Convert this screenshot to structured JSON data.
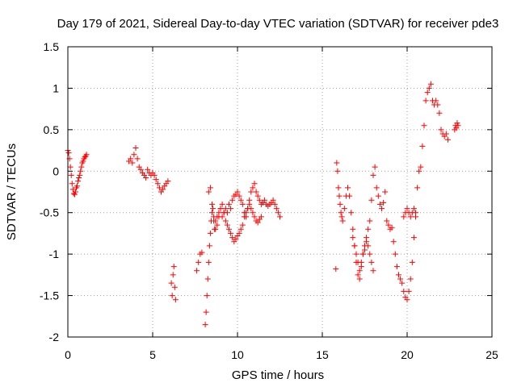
{
  "chart_data": {
    "type": "scatter",
    "title": "Day 179 of 2021, Sidereal Day-to-day VTEC variation (SDTVAR) for receiver pde3",
    "xlabel": "GPS time / hours",
    "ylabel": "SDTVAR / TECUs",
    "xlim": [
      0,
      25
    ],
    "ylim": [
      -2,
      1.5
    ],
    "xticks": [
      0,
      5,
      10,
      15,
      20,
      25
    ],
    "xtick_labels": [
      "0",
      "5",
      "10",
      "15",
      "20",
      "25"
    ],
    "yticks": [
      -2,
      -1.5,
      -1,
      -0.5,
      0,
      0.5,
      1,
      1.5
    ],
    "ytick_labels": [
      "-2",
      "-1.5",
      "-1",
      "-0.5",
      "0",
      "0.5",
      "1",
      "1.5"
    ],
    "grid": true,
    "marker": "+",
    "color": "#ff0000",
    "series": [
      {
        "name": "SDTVAR",
        "x": [
          0.0,
          0.05,
          0.1,
          0.15,
          0.2,
          0.25,
          0.3,
          0.35,
          0.4,
          0.45,
          0.5,
          0.55,
          0.6,
          0.65,
          0.7,
          0.75,
          0.8,
          0.85,
          0.9,
          0.95,
          1.0,
          1.05,
          1.1,
          3.6,
          3.7,
          3.8,
          3.9,
          4.0,
          4.1,
          4.2,
          4.3,
          4.4,
          4.5,
          4.6,
          4.7,
          4.8,
          4.9,
          5.0,
          5.1,
          5.2,
          5.3,
          5.4,
          5.5,
          5.6,
          5.7,
          5.8,
          5.9,
          6.1,
          6.15,
          6.2,
          6.25,
          6.3,
          6.35,
          7.6,
          7.7,
          7.8,
          7.9,
          8.1,
          8.15,
          8.2,
          8.25,
          8.3,
          8.35,
          8.4,
          8.45,
          8.5,
          8.55,
          8.6,
          8.65,
          8.7,
          8.8,
          8.9,
          9.0,
          9.1,
          9.2,
          9.3,
          9.4,
          9.5,
          9.6,
          9.7,
          9.8,
          9.9,
          10.0,
          10.1,
          10.2,
          10.3,
          10.4,
          10.5,
          10.6,
          10.7,
          10.8,
          10.9,
          11.0,
          11.1,
          11.2,
          11.3,
          11.4,
          11.5,
          11.6,
          11.7,
          11.8,
          11.9,
          12.0,
          12.1,
          12.2,
          12.3,
          12.4,
          12.5,
          8.3,
          8.4,
          8.5,
          8.6,
          8.7,
          8.8,
          8.9,
          9.0,
          9.1,
          9.2,
          9.3,
          9.4,
          9.5,
          9.6,
          9.7,
          9.8,
          9.9,
          10.0,
          10.1,
          10.2,
          10.3,
          10.4,
          10.5,
          10.6,
          10.7,
          10.8,
          10.9,
          11.0,
          11.1,
          11.2,
          11.3,
          11.4,
          15.8,
          15.85,
          15.9,
          15.95,
          16.0,
          16.05,
          16.1,
          16.15,
          16.2,
          16.3,
          16.4,
          16.5,
          16.6,
          16.7,
          16.8,
          16.9,
          17.0,
          17.1,
          17.2,
          17.3,
          17.4,
          17.5,
          17.6,
          17.7,
          17.8,
          17.9,
          18.0,
          18.1,
          18.2,
          18.3,
          18.4,
          18.5,
          18.6,
          18.7,
          18.8,
          18.9,
          19.0,
          19.1,
          19.2,
          19.3,
          19.4,
          19.5,
          19.6,
          19.7,
          19.8,
          19.9,
          20.0,
          20.1,
          20.2,
          20.3,
          20.4,
          20.5,
          20.6,
          20.7,
          20.8,
          20.9,
          21.0,
          21.1,
          21.2,
          21.3,
          21.4,
          21.5,
          21.6,
          21.7,
          21.8,
          21.9,
          22.0,
          22.1,
          22.2,
          22.3,
          22.4,
          16.8,
          16.9,
          17.0,
          17.1,
          17.2,
          17.3,
          17.4,
          17.5,
          17.6,
          17.7,
          17.8,
          17.9,
          18.0,
          19.8,
          19.9,
          20.0,
          20.1,
          20.2,
          20.3,
          20.4,
          20.5,
          22.8,
          22.85,
          22.9,
          22.95,
          23.0
        ],
        "y": [
          0.25,
          0.22,
          0.15,
          0.05,
          -0.05,
          -0.15,
          -0.22,
          -0.27,
          -0.28,
          -0.25,
          -0.2,
          -0.18,
          -0.12,
          -0.08,
          -0.05,
          0.0,
          0.05,
          0.1,
          0.12,
          0.15,
          0.17,
          0.18,
          0.2,
          0.12,
          0.15,
          0.1,
          0.2,
          0.28,
          0.15,
          0.05,
          0.02,
          -0.02,
          -0.05,
          -0.08,
          0.02,
          -0.02,
          -0.05,
          -0.02,
          -0.05,
          -0.1,
          -0.15,
          -0.2,
          -0.25,
          -0.22,
          -0.18,
          -0.15,
          -0.12,
          -1.35,
          -1.5,
          -1.25,
          -1.15,
          -1.4,
          -1.55,
          -1.2,
          -1.1,
          -1.0,
          -0.98,
          -1.85,
          -1.7,
          -1.5,
          -1.3,
          -1.1,
          -0.9,
          -0.75,
          -0.6,
          -0.5,
          -0.45,
          -0.55,
          -0.7,
          -0.6,
          -0.55,
          -0.5,
          -0.45,
          -0.55,
          -0.5,
          -0.45,
          -0.5,
          -0.4,
          -0.45,
          -0.35,
          -0.3,
          -0.28,
          -0.25,
          -0.3,
          -0.35,
          -0.4,
          -0.5,
          -0.55,
          -0.45,
          -0.35,
          -0.25,
          -0.2,
          -0.15,
          -0.25,
          -0.3,
          -0.35,
          -0.4,
          -0.38,
          -0.35,
          -0.4,
          -0.42,
          -0.4,
          -0.38,
          -0.35,
          -0.4,
          -0.45,
          -0.5,
          -0.55,
          -0.25,
          -0.2,
          -0.4,
          -0.6,
          -0.7,
          -0.65,
          -0.55,
          -0.45,
          -0.4,
          -0.5,
          -0.6,
          -0.65,
          -0.7,
          -0.75,
          -0.8,
          -0.85,
          -0.82,
          -0.78,
          -0.75,
          -0.7,
          -0.65,
          -0.55,
          -0.5,
          -0.45,
          -0.4,
          -0.45,
          -0.5,
          -0.55,
          -0.6,
          -0.62,
          -0.58,
          -0.55,
          -1.18,
          0.1,
          0.0,
          -0.2,
          -0.3,
          -0.4,
          -0.5,
          -0.55,
          -0.6,
          -0.45,
          -0.3,
          -0.2,
          -0.3,
          -0.5,
          -0.7,
          -0.9,
          -1.1,
          -1.25,
          -1.3,
          -1.15,
          -1.0,
          -0.9,
          -0.8,
          -0.7,
          -0.6,
          -0.35,
          -0.05,
          0.05,
          -0.2,
          -0.3,
          -0.4,
          -0.45,
          -0.38,
          -0.25,
          -0.6,
          -0.65,
          -0.7,
          -0.68,
          -0.85,
          -1.0,
          -1.15,
          -1.25,
          -1.3,
          -1.35,
          -1.45,
          -1.52,
          -1.55,
          -1.45,
          -1.3,
          -1.1,
          -0.8,
          -0.5,
          -0.2,
          0.0,
          0.05,
          0.3,
          0.55,
          0.85,
          0.95,
          1.0,
          1.05,
          0.85,
          0.8,
          0.85,
          0.8,
          0.7,
          0.5,
          0.45,
          0.42,
          0.45,
          0.38,
          -0.8,
          -0.9,
          -1.0,
          -1.1,
          -1.2,
          -1.1,
          -1.0,
          -0.95,
          -0.85,
          -0.9,
          -1.0,
          -1.1,
          -1.2,
          -0.55,
          -0.5,
          -0.45,
          -0.5,
          -0.55,
          -0.5,
          -0.45,
          -0.55,
          0.5,
          0.55,
          0.52,
          0.58,
          0.55
        ]
      }
    ]
  }
}
